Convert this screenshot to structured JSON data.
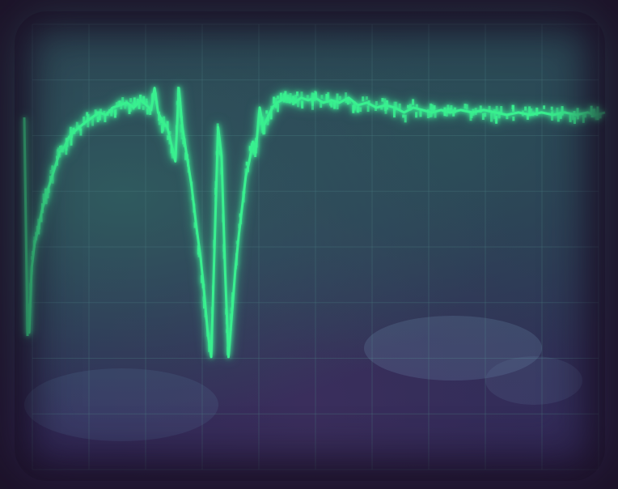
{
  "scene": {
    "subject": "oscilloscope-screen",
    "trace_color": "#39f08f",
    "graticule_color": "#4a7d80",
    "background_color": "#2d3a55"
  },
  "trace": {
    "points": [
      [
        0.0,
        0.62
      ],
      [
        0.003,
        0.68
      ],
      [
        0.007,
        0.55
      ],
      [
        0.012,
        0.5
      ],
      [
        0.018,
        0.47
      ],
      [
        0.025,
        0.43
      ],
      [
        0.032,
        0.4
      ],
      [
        0.04,
        0.37
      ],
      [
        0.048,
        0.34
      ],
      [
        0.056,
        0.31
      ],
      [
        0.064,
        0.3
      ],
      [
        0.072,
        0.28
      ],
      [
        0.08,
        0.27
      ],
      [
        0.09,
        0.26
      ],
      [
        0.1,
        0.25
      ],
      [
        0.112,
        0.24
      ],
      [
        0.124,
        0.23
      ],
      [
        0.136,
        0.235
      ],
      [
        0.148,
        0.22
      ],
      [
        0.16,
        0.215
      ],
      [
        0.172,
        0.21
      ],
      [
        0.184,
        0.22
      ],
      [
        0.196,
        0.205
      ],
      [
        0.206,
        0.215
      ],
      [
        0.214,
        0.225
      ],
      [
        0.22,
        0.18
      ],
      [
        0.226,
        0.23
      ],
      [
        0.234,
        0.25
      ],
      [
        0.242,
        0.26
      ],
      [
        0.25,
        0.3
      ],
      [
        0.256,
        0.33
      ],
      [
        0.262,
        0.18
      ],
      [
        0.268,
        0.26
      ],
      [
        0.276,
        0.32
      ],
      [
        0.284,
        0.38
      ],
      [
        0.292,
        0.46
      ],
      [
        0.3,
        0.53
      ],
      [
        0.306,
        0.6
      ],
      [
        0.312,
        0.68
      ],
      [
        0.318,
        0.73
      ],
      [
        0.324,
        0.5
      ],
      [
        0.33,
        0.26
      ],
      [
        0.336,
        0.32
      ],
      [
        0.342,
        0.55
      ],
      [
        0.348,
        0.73
      ],
      [
        0.354,
        0.64
      ],
      [
        0.36,
        0.55
      ],
      [
        0.366,
        0.48
      ],
      [
        0.372,
        0.42
      ],
      [
        0.378,
        0.36
      ],
      [
        0.384,
        0.33
      ],
      [
        0.39,
        0.29
      ],
      [
        0.396,
        0.3
      ],
      [
        0.402,
        0.22
      ],
      [
        0.408,
        0.26
      ],
      [
        0.416,
        0.24
      ],
      [
        0.424,
        0.22
      ],
      [
        0.432,
        0.21
      ],
      [
        0.44,
        0.205
      ],
      [
        0.45,
        0.2
      ],
      [
        0.462,
        0.21
      ],
      [
        0.474,
        0.2
      ],
      [
        0.486,
        0.205
      ],
      [
        0.498,
        0.2
      ],
      [
        0.512,
        0.21
      ],
      [
        0.526,
        0.205
      ],
      [
        0.54,
        0.21
      ],
      [
        0.556,
        0.2
      ],
      [
        0.572,
        0.215
      ],
      [
        0.588,
        0.21
      ],
      [
        0.604,
        0.22
      ],
      [
        0.62,
        0.215
      ],
      [
        0.636,
        0.22
      ],
      [
        0.652,
        0.23
      ],
      [
        0.668,
        0.22
      ],
      [
        0.684,
        0.225
      ],
      [
        0.7,
        0.23
      ],
      [
        0.716,
        0.225
      ],
      [
        0.732,
        0.23
      ],
      [
        0.75,
        0.225
      ],
      [
        0.77,
        0.23
      ],
      [
        0.79,
        0.225
      ],
      [
        0.81,
        0.23
      ],
      [
        0.83,
        0.235
      ],
      [
        0.85,
        0.23
      ],
      [
        0.87,
        0.235
      ],
      [
        0.89,
        0.23
      ],
      [
        0.91,
        0.235
      ],
      [
        0.93,
        0.23
      ],
      [
        0.95,
        0.235
      ],
      [
        0.97,
        0.23
      ],
      [
        0.985,
        0.235
      ],
      [
        1.0,
        0.23
      ]
    ]
  }
}
